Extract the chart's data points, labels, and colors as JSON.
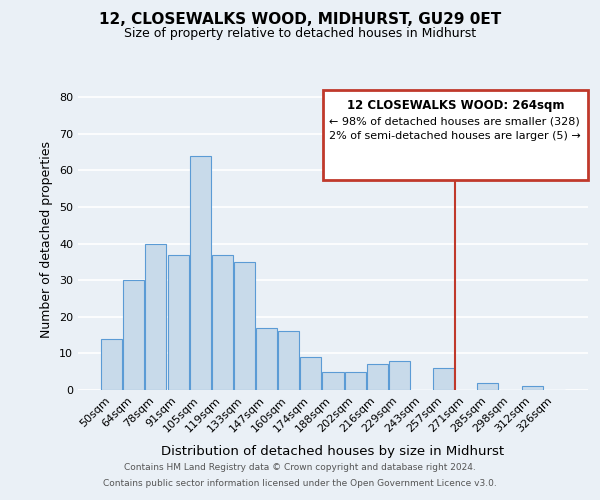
{
  "title": "12, CLOSEWALKS WOOD, MIDHURST, GU29 0ET",
  "subtitle": "Size of property relative to detached houses in Midhurst",
  "xlabel": "Distribution of detached houses by size in Midhurst",
  "ylabel": "Number of detached properties",
  "bar_color": "#c8daea",
  "bar_edge_color": "#5b9bd5",
  "categories": [
    "50sqm",
    "64sqm",
    "78sqm",
    "91sqm",
    "105sqm",
    "119sqm",
    "133sqm",
    "147sqm",
    "160sqm",
    "174sqm",
    "188sqm",
    "202sqm",
    "216sqm",
    "229sqm",
    "243sqm",
    "257sqm",
    "271sqm",
    "285sqm",
    "298sqm",
    "312sqm",
    "326sqm"
  ],
  "values": [
    14,
    30,
    40,
    37,
    64,
    37,
    35,
    17,
    16,
    9,
    5,
    5,
    7,
    8,
    0,
    6,
    0,
    2,
    0,
    1,
    0
  ],
  "ylim": [
    0,
    82
  ],
  "yticks": [
    0,
    10,
    20,
    30,
    40,
    50,
    60,
    70,
    80
  ],
  "vline_x": 15.5,
  "vline_color": "#c0392b",
  "annotation_title": "12 CLOSEWALKS WOOD: 264sqm",
  "annotation_line1": "← 98% of detached houses are smaller (328)",
  "annotation_line2": "2% of semi-detached houses are larger (5) →",
  "annotation_box_color": "#ffffff",
  "annotation_border_color": "#c0392b",
  "footer1": "Contains HM Land Registry data © Crown copyright and database right 2024.",
  "footer2": "Contains public sector information licensed under the Open Government Licence v3.0.",
  "background_color": "#eaf0f6",
  "grid_color": "#ffffff"
}
